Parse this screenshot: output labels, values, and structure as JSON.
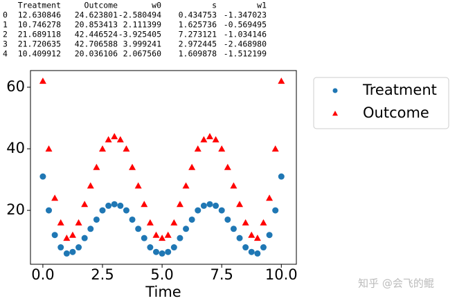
{
  "table": {
    "header": [
      "Treatment",
      "Outcome",
      "w0",
      "s",
      "w1"
    ],
    "rows": [
      [
        "0",
        "12.630846",
        "24.623801",
        "-2.580494",
        "0.434753",
        "-1.347023"
      ],
      [
        "1",
        "10.746278",
        "20.853413",
        "2.111399",
        "1.625736",
        "-0.569495"
      ],
      [
        "2",
        "21.689118",
        "42.446524",
        "-3.925405",
        "7.273121",
        "-1.034146"
      ],
      [
        "3",
        "21.720635",
        "42.706588",
        "3.999241",
        "2.972445",
        "-2.468980"
      ],
      [
        "4",
        "10.409912",
        "20.036106",
        "2.067560",
        "1.609878",
        "-1.512199"
      ]
    ]
  },
  "chart_data": {
    "type": "scatter",
    "xlabel": "Time",
    "x": [
      0,
      0.25,
      0.5,
      0.75,
      1,
      1.25,
      1.5,
      1.75,
      2,
      2.25,
      2.5,
      2.75,
      3,
      3.25,
      3.5,
      3.75,
      4,
      4.25,
      4.5,
      4.75,
      5,
      5.25,
      5.5,
      5.75,
      6,
      6.25,
      6.5,
      6.75,
      7,
      7.25,
      7.5,
      7.75,
      8,
      8.25,
      8.5,
      8.75,
      9,
      9.25,
      9.5,
      9.75,
      10
    ],
    "series": [
      {
        "name": "Treatment",
        "color": "#1f77b4",
        "marker": "circle",
        "values": [
          31,
          20,
          12,
          8,
          6,
          6.5,
          8,
          11,
          14,
          17,
          20,
          21.5,
          22,
          21.5,
          20,
          17,
          14,
          11,
          8,
          6.5,
          6,
          6.5,
          8,
          11,
          14,
          17,
          20,
          21.5,
          22,
          21.5,
          20,
          17,
          14,
          11,
          8,
          6.5,
          6,
          8,
          12,
          20,
          31
        ]
      },
      {
        "name": "Outcome",
        "color": "#ff0000",
        "marker": "triangle",
        "values": [
          62,
          40,
          24,
          16,
          11,
          12,
          16,
          22,
          28,
          34,
          40,
          43,
          44,
          43,
          40,
          34,
          28,
          22,
          16,
          12,
          11,
          12,
          16,
          22,
          28,
          34,
          40,
          43,
          44,
          43,
          40,
          34,
          28,
          22,
          16,
          12,
          11,
          16,
          24,
          40,
          62
        ]
      }
    ],
    "xlim": [
      -0.52,
      10.63
    ],
    "ylim": [
      2.5,
      65.4
    ],
    "xticks": [
      {
        "value": 0,
        "label": "0.0"
      },
      {
        "value": 2.5,
        "label": "2.5"
      },
      {
        "value": 5,
        "label": "5.0"
      },
      {
        "value": 7.5,
        "label": "7.5"
      },
      {
        "value": 10,
        "label": "10.0"
      }
    ],
    "yticks": [
      20,
      40,
      60
    ],
    "grid": false,
    "legend": "outside-right"
  },
  "watermark": "知乎 @会飞的鲲"
}
